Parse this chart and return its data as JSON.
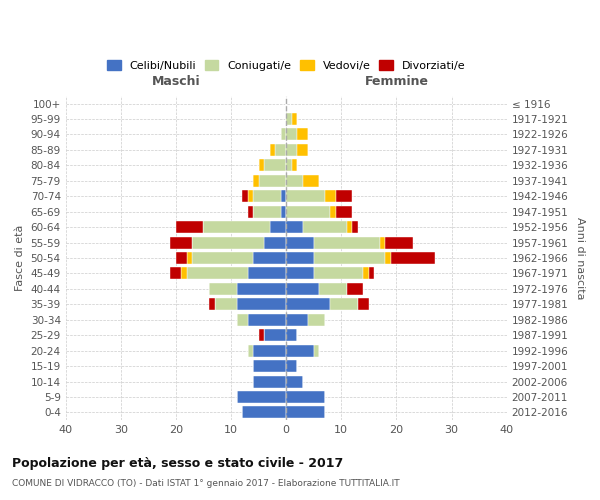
{
  "age_groups": [
    "0-4",
    "5-9",
    "10-14",
    "15-19",
    "20-24",
    "25-29",
    "30-34",
    "35-39",
    "40-44",
    "45-49",
    "50-54",
    "55-59",
    "60-64",
    "65-69",
    "70-74",
    "75-79",
    "80-84",
    "85-89",
    "90-94",
    "95-99",
    "100+"
  ],
  "birth_years": [
    "2012-2016",
    "2007-2011",
    "2002-2006",
    "1997-2001",
    "1992-1996",
    "1987-1991",
    "1982-1986",
    "1977-1981",
    "1972-1976",
    "1967-1971",
    "1962-1966",
    "1957-1961",
    "1952-1956",
    "1947-1951",
    "1942-1946",
    "1937-1941",
    "1932-1936",
    "1927-1931",
    "1922-1926",
    "1917-1921",
    "≤ 1916"
  ],
  "male": {
    "celibi": [
      8,
      9,
      6,
      6,
      6,
      4,
      7,
      9,
      9,
      7,
      6,
      4,
      3,
      1,
      1,
      0,
      0,
      0,
      0,
      0,
      0
    ],
    "coniugati": [
      0,
      0,
      0,
      0,
      1,
      0,
      2,
      4,
      5,
      11,
      11,
      13,
      12,
      5,
      5,
      5,
      4,
      2,
      1,
      0,
      0
    ],
    "vedovi": [
      0,
      0,
      0,
      0,
      0,
      0,
      0,
      0,
      0,
      1,
      1,
      0,
      0,
      0,
      1,
      1,
      1,
      1,
      0,
      0,
      0
    ],
    "divorziati": [
      0,
      0,
      0,
      0,
      0,
      1,
      0,
      1,
      0,
      2,
      2,
      4,
      5,
      1,
      1,
      0,
      0,
      0,
      0,
      0,
      0
    ]
  },
  "female": {
    "nubili": [
      7,
      7,
      3,
      2,
      5,
      2,
      4,
      8,
      6,
      5,
      5,
      5,
      3,
      0,
      0,
      0,
      0,
      0,
      0,
      0,
      0
    ],
    "coniugate": [
      0,
      0,
      0,
      0,
      1,
      0,
      3,
      5,
      5,
      9,
      13,
      12,
      8,
      8,
      7,
      3,
      1,
      2,
      2,
      1,
      0
    ],
    "vedove": [
      0,
      0,
      0,
      0,
      0,
      0,
      0,
      0,
      0,
      1,
      1,
      1,
      1,
      1,
      2,
      3,
      1,
      2,
      2,
      1,
      0
    ],
    "divorziate": [
      0,
      0,
      0,
      0,
      0,
      0,
      0,
      2,
      3,
      1,
      8,
      5,
      1,
      3,
      3,
      0,
      0,
      0,
      0,
      0,
      0
    ]
  },
  "colors": {
    "celibi": "#4472c4",
    "coniugati": "#c5d9a0",
    "vedovi": "#ffc000",
    "divorziati": "#c00000"
  },
  "title": "Popolazione per età, sesso e stato civile - 2017",
  "subtitle": "COMUNE DI VIDRACCO (TO) - Dati ISTAT 1° gennaio 2017 - Elaborazione TUTTITALIA.IT",
  "xlabel_left": "Maschi",
  "xlabel_right": "Femmine",
  "ylabel_left": "Fasce di età",
  "ylabel_right": "Anni di nascita",
  "xlim": 40,
  "legend_labels": [
    "Celibi/Nubili",
    "Coniugati/e",
    "Vedovi/e",
    "Divorziati/e"
  ],
  "bg_color": "#ffffff",
  "grid_color": "#cccccc"
}
